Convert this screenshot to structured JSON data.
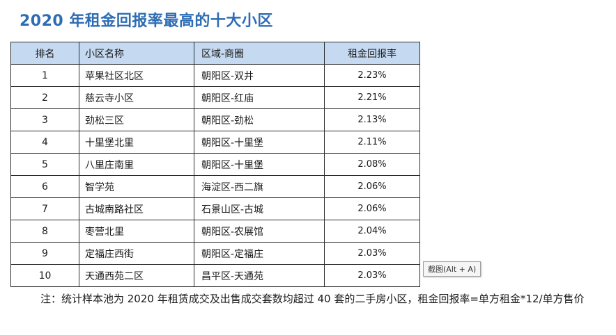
{
  "title": "2020 年租金回报率最高的十大小区",
  "table": {
    "headers": [
      "排名",
      "小区名称",
      "区域-商圈",
      "租金回报率"
    ],
    "rows": [
      {
        "rank": "1",
        "name": "苹果社区北区",
        "area": "朝阳区-双井",
        "rate": "2.23%"
      },
      {
        "rank": "2",
        "name": "慈云寺小区",
        "area": "朝阳区-红庙",
        "rate": "2.21%"
      },
      {
        "rank": "3",
        "name": "劲松三区",
        "area": "朝阳区-劲松",
        "rate": "2.13%"
      },
      {
        "rank": "4",
        "name": "十里堡北里",
        "area": "朝阳区-十里堡",
        "rate": "2.11%"
      },
      {
        "rank": "5",
        "name": "八里庄南里",
        "area": "朝阳区-十里堡",
        "rate": "2.08%"
      },
      {
        "rank": "6",
        "name": "智学苑",
        "area": "海淀区-西二旗",
        "rate": "2.06%"
      },
      {
        "rank": "7",
        "name": "古城南路社区",
        "area": "石景山区-古城",
        "rate": "2.06%"
      },
      {
        "rank": "8",
        "name": "枣营北里",
        "area": "朝阳区-农展馆",
        "rate": "2.04%"
      },
      {
        "rank": "9",
        "name": "定福庄西街",
        "area": "朝阳区-定福庄",
        "rate": "2.03%"
      },
      {
        "rank": "10",
        "name": "天通西苑二区",
        "area": "昌平区-天通苑",
        "rate": "2.03%"
      }
    ]
  },
  "tooltip": "截图(Alt + A)",
  "note": "注：统计样本池为 2020 年租赁成交及出售成交套数均超过 40 套的二手房小区，租金回报率=单方租金*12/单方售价",
  "colors": {
    "title": "#2e6db4",
    "header_bg": "#c5d9f1",
    "border": "#2b2b2b"
  }
}
